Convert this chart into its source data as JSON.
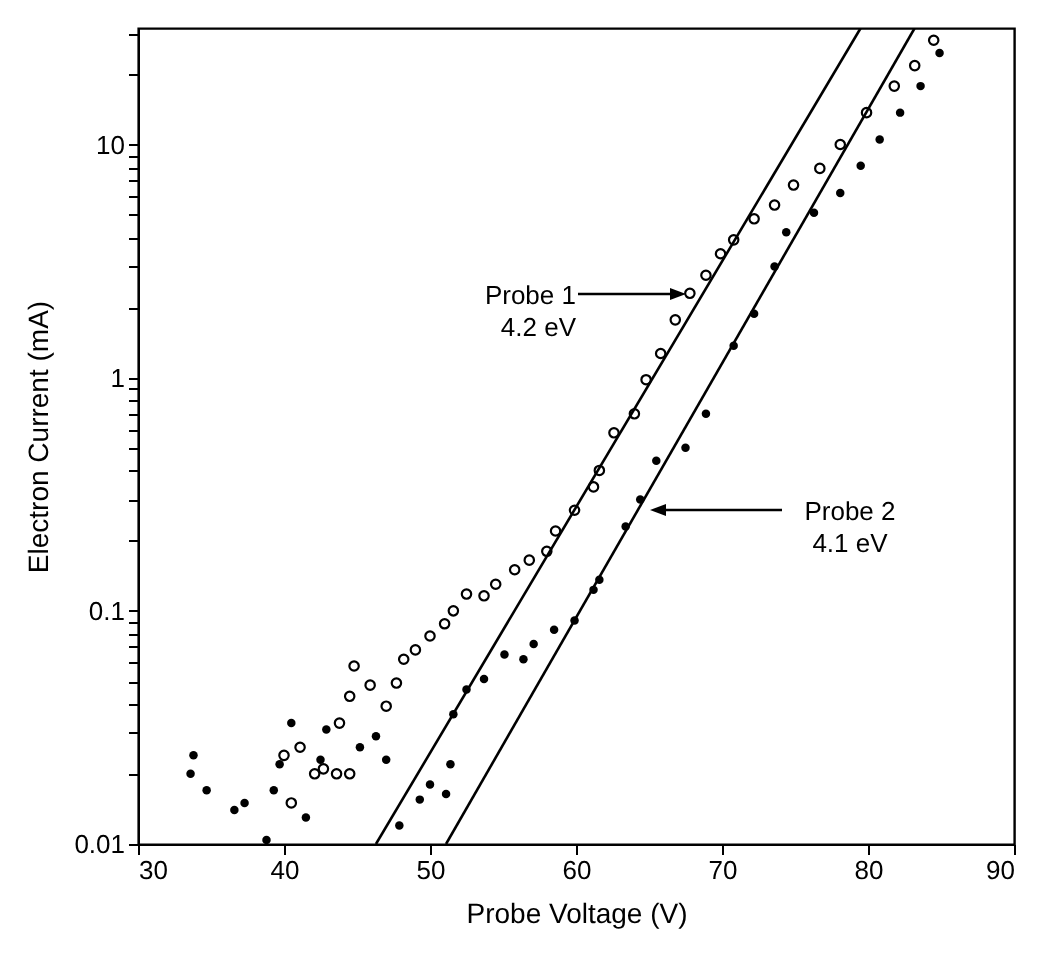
{
  "chart_data": {
    "type": "scatter",
    "xlabel": "Probe Voltage (V)",
    "ylabel": "Electron Current (mA)",
    "log": "y",
    "grid": false,
    "xlim": [
      30,
      90
    ],
    "xticks": [
      30,
      40,
      50,
      60,
      70,
      80,
      90
    ],
    "ylim": [
      0.01,
      31.6
    ],
    "yticks": [
      0.01,
      {
        "value": 0.02,
        "label": null
      },
      {
        "value": 0.03,
        "label": null
      },
      {
        "value": 0.04,
        "label": null
      },
      {
        "value": 0.05,
        "label": null
      },
      {
        "value": 0.06,
        "label": null
      },
      {
        "value": 0.07,
        "label": null
      },
      {
        "value": 0.08,
        "label": null
      },
      {
        "value": 0.09,
        "label": null
      },
      0.1,
      {
        "value": 0.2,
        "label": null
      },
      {
        "value": 0.3,
        "label": null
      },
      {
        "value": 0.4,
        "label": null
      },
      {
        "value": 0.5,
        "label": null
      },
      {
        "value": 0.6,
        "label": null
      },
      {
        "value": 0.7,
        "label": null
      },
      {
        "value": 0.8,
        "label": null
      },
      {
        "value": 0.9,
        "label": null
      },
      1,
      {
        "value": 2,
        "label": null
      },
      {
        "value": 3,
        "label": null
      },
      {
        "value": 4,
        "label": null
      },
      {
        "value": 5,
        "label": null
      },
      {
        "value": 6,
        "label": null
      },
      {
        "value": 7,
        "label": null
      },
      {
        "value": 8,
        "label": null
      },
      {
        "value": 9,
        "label": null
      },
      10,
      {
        "value": 20,
        "label": null
      },
      {
        "value": 30,
        "label": null
      }
    ],
    "series": [
      {
        "marker": "circle",
        "color": "#000000",
        "x": [
          40.5,
          40,
          41.1,
          42.1,
          42.7,
          43.6,
          44.5,
          43.8,
          44.5,
          44.8,
          45.9,
          47.0,
          47.7,
          48.2,
          49.0,
          50.0,
          51.0,
          51.6,
          52.5,
          53.7,
          54.5,
          55.8,
          56.8,
          58.0,
          58.6,
          59.9,
          61.2,
          61.6,
          62.6,
          64.0,
          64.8,
          65.8,
          66.8,
          67.8,
          68.9,
          69.9,
          70.8,
          72.2,
          73.6,
          74.9,
          76.7,
          78.1,
          79.9,
          81.8,
          83.2,
          84.5
        ],
        "values": [
          0.015,
          0.024,
          0.026,
          0.02,
          0.021,
          0.02,
          0.02,
          0.033,
          0.043,
          0.058,
          0.048,
          0.039,
          0.049,
          0.062,
          0.068,
          0.078,
          0.088,
          0.1,
          0.118,
          0.116,
          0.13,
          0.15,
          0.165,
          0.18,
          0.22,
          0.27,
          0.34,
          0.4,
          0.58,
          0.7,
          0.98,
          1.27,
          1.77,
          2.3,
          2.75,
          3.4,
          3.9,
          4.8,
          5.5,
          6.7,
          7.9,
          10,
          13.7,
          17.8,
          21.8,
          28
        ]
      },
      {
        "marker": "circle",
        "color": "#000000",
        "x": [
          33.6,
          33.8,
          34.7,
          36.6,
          37.3,
          38.8,
          39.3,
          40.5,
          39.7,
          41.5,
          42.5,
          42.9,
          45.2,
          46.3,
          47.0,
          47.9,
          49.3,
          50.0,
          51.1,
          51.4,
          51.6,
          52.5,
          53.7,
          55.1,
          56.4,
          57.1,
          58.5,
          59.9,
          61.2,
          61.6,
          63.4,
          64.4,
          65.5,
          67.5,
          68.9,
          70.8,
          72.2,
          73.6,
          74.4,
          76.3,
          78.1,
          79.5,
          80.8,
          82.2,
          83.6,
          84.9
        ],
        "values": [
          0.02,
          0.024,
          0.017,
          0.014,
          0.015,
          0.0104,
          0.017,
          0.033,
          0.022,
          0.013,
          0.023,
          0.031,
          0.026,
          0.029,
          0.023,
          0.012,
          0.0155,
          0.018,
          0.0164,
          0.022,
          0.036,
          0.046,
          0.051,
          0.065,
          0.062,
          0.072,
          0.083,
          0.091,
          0.123,
          0.136,
          0.23,
          0.3,
          0.44,
          0.5,
          0.7,
          1.37,
          1.88,
          3.0,
          4.2,
          5.1,
          6.2,
          8.1,
          10.5,
          13.7,
          17.8,
          24.7
        ]
      },
      {
        "type": "line",
        "color": "#000000",
        "x": [
          46.3,
          79.5
        ],
        "values": [
          0.01,
          31.6
        ]
      },
      {
        "type": "line",
        "color": "#000000",
        "x": [
          51.1,
          83.2
        ],
        "values": [
          0.01,
          31.6
        ]
      }
    ],
    "annotations": [
      "Probe 1\n4.2 eV",
      "Probe 2\n4.1 eV"
    ]
  }
}
